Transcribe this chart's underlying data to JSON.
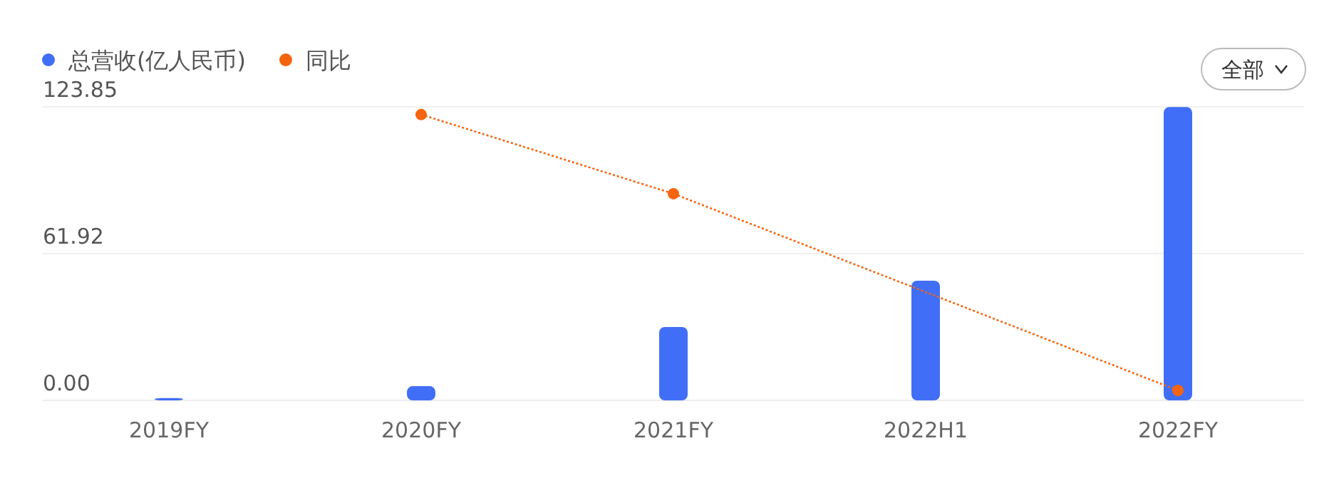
{
  "chart_data": {
    "type": "bar",
    "categories": [
      "2019FY",
      "2020FY",
      "2021FY",
      "2022H1",
      "2022FY"
    ],
    "series": [
      {
        "name": "总营收(亿人民币)",
        "color": "#416ef6",
        "values": [
          1.0,
          6.0,
          31.0,
          50.5,
          123.8
        ]
      },
      {
        "name": "同比",
        "type": "line",
        "color": "#f5640f",
        "values": [
          null,
          120.6,
          87.2,
          null,
          4.2
        ]
      }
    ],
    "ylim": [
      0,
      123.85
    ],
    "yticks": [
      {
        "value": 0,
        "label": "0.00"
      },
      {
        "value": 61.92,
        "label": "61.92"
      },
      {
        "value": 123.85,
        "label": "123.85"
      }
    ],
    "grid": "y",
    "legend": "top left",
    "marker": "circle",
    "line_style": "dotted",
    "annotations": [
      "全部"
    ]
  }
}
